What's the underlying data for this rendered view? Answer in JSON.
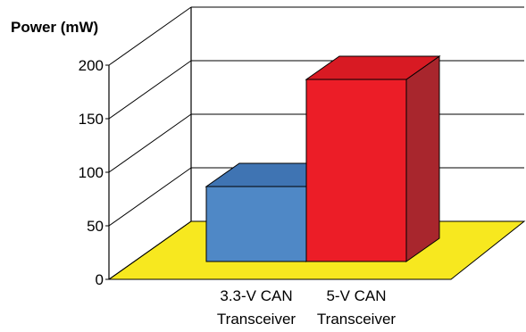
{
  "chart_data": {
    "type": "bar",
    "ylabel": "Power (mW)",
    "categories": [
      [
        "3.3-V CAN",
        "Transceiver"
      ],
      [
        "5-V CAN",
        "Transceiver"
      ]
    ],
    "values": [
      70,
      170
    ],
    "ylim": [
      0,
      200
    ],
    "yticks": [
      0,
      50,
      100,
      150,
      200
    ],
    "colors": {
      "floor": "#f7e81f",
      "bar1_front": "#4f88c6",
      "bar1_top": "#3f74b3",
      "bar1_side": "#35609a",
      "bar2_front": "#ec1d27",
      "bar2_top": "#d81a23",
      "bar2_side": "#a8262d"
    },
    "grid": true
  }
}
